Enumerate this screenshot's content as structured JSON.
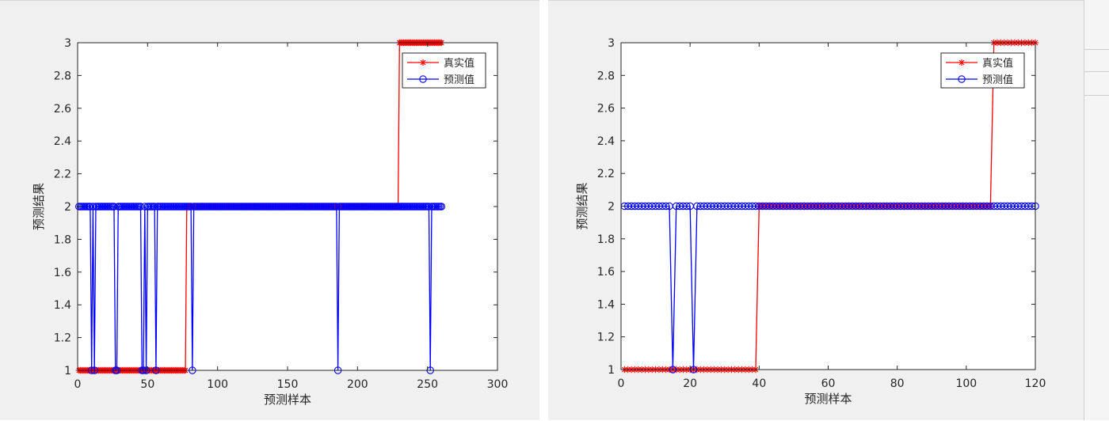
{
  "charts": [
    {
      "type": "line",
      "xlabel": "预测样本",
      "ylabel": "预测结果",
      "xlim": [
        0,
        300
      ],
      "ylim": [
        1,
        3
      ],
      "xticks": [
        0,
        50,
        100,
        150,
        200,
        250,
        300
      ],
      "yticks": [
        1,
        1.2,
        1.4,
        1.6,
        1.8,
        2,
        2.2,
        2.4,
        2.6,
        2.8,
        3
      ],
      "legend_position": "top-right",
      "grid": false,
      "n_samples": 260,
      "series": [
        {
          "name": "真实值",
          "color": "#ff0000",
          "marker": "asterisk",
          "segments": [
            {
              "from": 1,
              "to": 77,
              "value": 1
            },
            {
              "from": 78,
              "to": 229,
              "value": 2
            },
            {
              "from": 230,
              "to": 260,
              "value": 3
            }
          ]
        },
        {
          "name": "预测值",
          "color": "#0000ff",
          "marker": "circle",
          "default": 2,
          "exceptions": [
            {
              "x": 10,
              "value": 1
            },
            {
              "x": 12,
              "value": 1
            },
            {
              "x": 27,
              "value": 1
            },
            {
              "x": 28,
              "value": 1
            },
            {
              "x": 46,
              "value": 1
            },
            {
              "x": 47,
              "value": 1
            },
            {
              "x": 49,
              "value": 1
            },
            {
              "x": 56,
              "value": 1
            },
            {
              "x": 82,
              "value": 1
            },
            {
              "x": 186,
              "value": 1
            },
            {
              "x": 252,
              "value": 1
            }
          ]
        }
      ]
    },
    {
      "type": "line",
      "xlabel": "预测样本",
      "ylabel": "预测结果",
      "xlim": [
        0,
        120
      ],
      "ylim": [
        1,
        3
      ],
      "xticks": [
        0,
        20,
        40,
        60,
        80,
        100,
        120
      ],
      "yticks": [
        1,
        1.2,
        1.4,
        1.6,
        1.8,
        2,
        2.2,
        2.4,
        2.6,
        2.8,
        3
      ],
      "legend_position": "top-right",
      "grid": false,
      "n_samples": 120,
      "series": [
        {
          "name": "真实值",
          "color": "#ff0000",
          "marker": "asterisk",
          "segments": [
            {
              "from": 1,
              "to": 39,
              "value": 1
            },
            {
              "from": 40,
              "to": 107,
              "value": 2
            },
            {
              "from": 108,
              "to": 120,
              "value": 3
            }
          ]
        },
        {
          "name": "预测值",
          "color": "#0000ff",
          "marker": "circle",
          "default": 2,
          "exceptions": [
            {
              "x": 15,
              "value": 1
            },
            {
              "x": 21,
              "value": 1
            }
          ]
        }
      ]
    }
  ]
}
